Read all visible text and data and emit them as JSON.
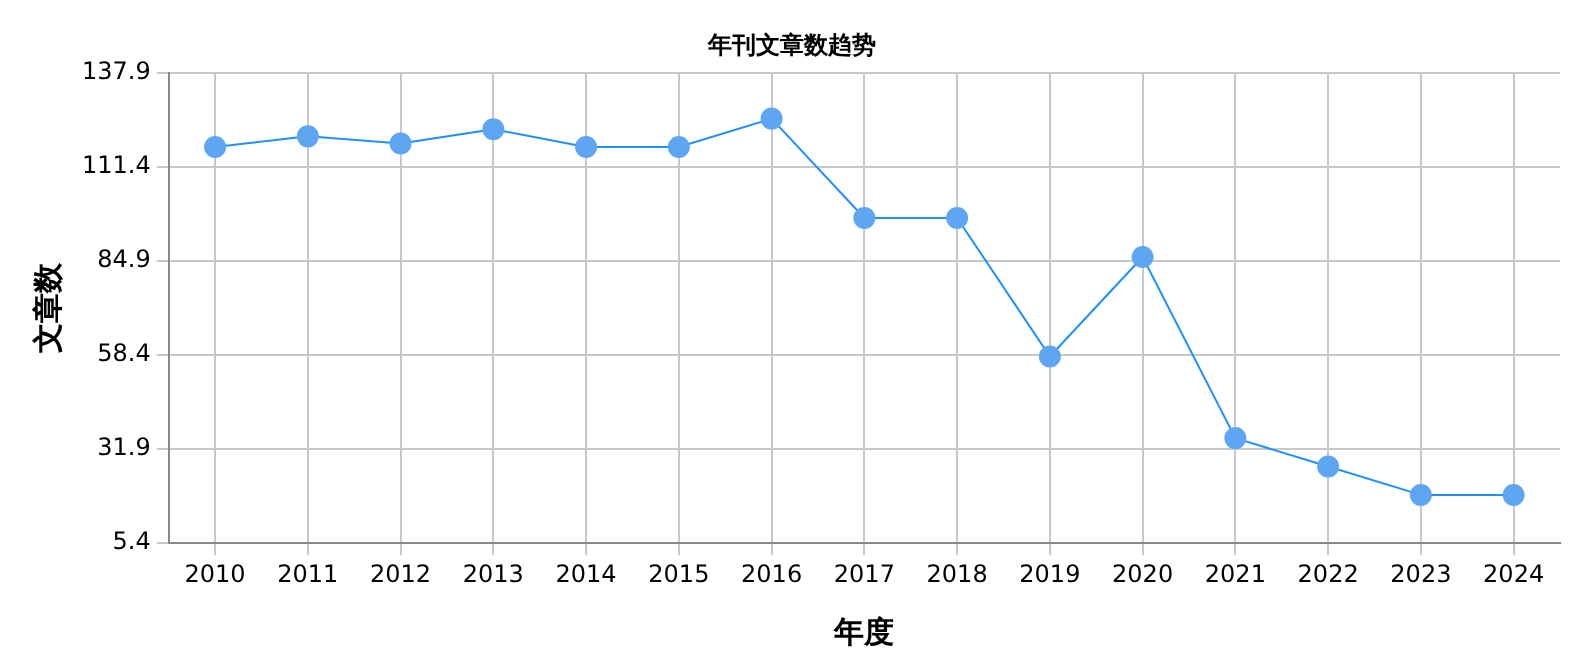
{
  "chart_data": {
    "type": "line",
    "title": "年刊文章数趋势",
    "xlabel": "年度",
    "ylabel": "文章数",
    "categories": [
      "2010",
      "2011",
      "2012",
      "2013",
      "2014",
      "2015",
      "2016",
      "2017",
      "2018",
      "2019",
      "2020",
      "2021",
      "2022",
      "2023",
      "2024"
    ],
    "series": [
      {
        "color": "#1e90ff",
        "values": [
          117,
          120,
          118,
          122,
          117,
          117,
          125,
          97,
          97,
          58,
          86,
          35,
          27,
          19,
          19
        ]
      }
    ],
    "ylim": [
      5.4,
      137.9
    ],
    "yticks": [
      5.4,
      31.9,
      58.4,
      84.9,
      111.4,
      137.9
    ],
    "grid": true,
    "marker": "circle",
    "line_style": "solid",
    "legend": false
  }
}
